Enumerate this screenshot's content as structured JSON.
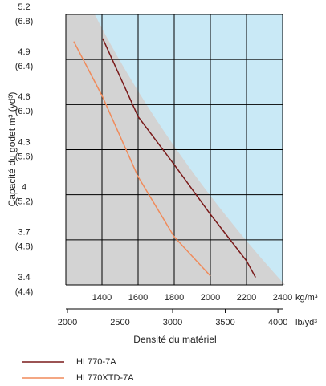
{
  "chart_data": {
    "type": "line",
    "y_axis_label": "Capacité du godet m³ (yd³)",
    "x_axis_label": "Densité du matériel",
    "x_unit": "kg/m³",
    "x2_unit": "lb/yd³",
    "xlim": [
      1200,
      2400
    ],
    "xticks": [
      1400,
      1600,
      1800,
      2000,
      2200,
      2400
    ],
    "x2lim": [
      1985,
      4045
    ],
    "x2ticks": [
      2000,
      2500,
      3000,
      3500,
      4000
    ],
    "ylim": [
      3.4,
      5.2
    ],
    "yticks": [
      3.4,
      3.7,
      4.0,
      4.3,
      4.6,
      4.9,
      5.2
    ],
    "y2lim": [
      4.4,
      6.8
    ],
    "y2ticks": [
      {
        "value": 4.4,
        "label": "(4.4)"
      },
      {
        "value": 4.8,
        "label": "(4.8)"
      },
      {
        "value": 5.2,
        "label": "(5.2)"
      },
      {
        "value": 5.6,
        "label": "(5.6)"
      },
      {
        "value": 6.0,
        "label": "(6.0)"
      },
      {
        "value": 6.4,
        "label": "(6.4)"
      },
      {
        "value": 6.8,
        "label": "(6.8)"
      }
    ],
    "grid": true,
    "series": [
      {
        "name": "HL770-7A",
        "color": "#7a1a1a",
        "x": [
          1404,
          1600,
          1800,
          2000,
          2200,
          2250
        ],
        "values": [
          5.04,
          4.52,
          4.2,
          3.87,
          3.56,
          3.45
        ]
      },
      {
        "name": "HL770XTD-7A",
        "color": "#f08a5a",
        "x": [
          1244,
          1400,
          1600,
          1800,
          2000
        ],
        "values": [
          5.02,
          4.66,
          4.12,
          3.72,
          3.46
        ]
      }
    ]
  }
}
